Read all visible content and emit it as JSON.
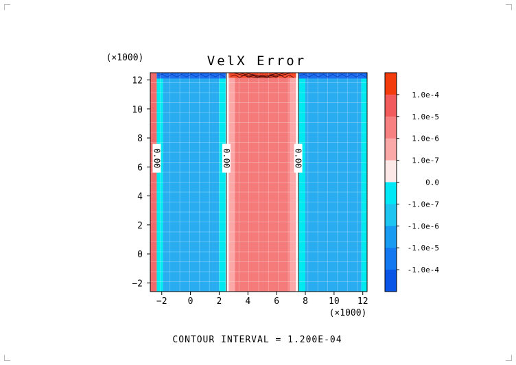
{
  "chart_data": {
    "type": "heatmap",
    "title": "VelX Error",
    "x_multiplier": "(×1000)",
    "y_multiplier": "(×1000)",
    "xlim": [
      -2.8,
      12.3
    ],
    "ylim": [
      -2.6,
      12.5
    ],
    "x_ticks": [
      {
        "value": -2,
        "label": "−2"
      },
      {
        "value": 0,
        "label": "0"
      },
      {
        "value": 2,
        "label": "2"
      },
      {
        "value": 4,
        "label": "4"
      },
      {
        "value": 6,
        "label": "6"
      },
      {
        "value": 8,
        "label": "8"
      },
      {
        "value": 10,
        "label": "10"
      },
      {
        "value": 12,
        "label": "12"
      }
    ],
    "y_ticks": [
      {
        "value": -2,
        "label": "−2"
      },
      {
        "value": 0,
        "label": "0"
      },
      {
        "value": 2,
        "label": "2"
      },
      {
        "value": 4,
        "label": "4"
      },
      {
        "value": 6,
        "label": "6"
      },
      {
        "value": 8,
        "label": "8"
      },
      {
        "value": 10,
        "label": "10"
      },
      {
        "value": 12,
        "label": "12"
      }
    ],
    "vertical_bands": [
      {
        "x0": -2.8,
        "x1": -2.35,
        "color": "#f06a6a"
      },
      {
        "x0": -2.35,
        "x1": -1.9,
        "color": "#00e8f0"
      },
      {
        "x0": -1.9,
        "x1": 2.0,
        "color": "#29adf0"
      },
      {
        "x0": 2.0,
        "x1": 2.45,
        "color": "#00e8f0"
      },
      {
        "x0": 2.45,
        "x1": 2.65,
        "color": "#ffffff"
      },
      {
        "x0": 2.65,
        "x1": 3.1,
        "color": "#fba7a7"
      },
      {
        "x0": 3.1,
        "x1": 6.9,
        "color": "#f57b7b"
      },
      {
        "x0": 6.9,
        "x1": 7.35,
        "color": "#fba7a7"
      },
      {
        "x0": 7.35,
        "x1": 7.55,
        "color": "#ffffff"
      },
      {
        "x0": 7.55,
        "x1": 8.0,
        "color": "#00e8f0"
      },
      {
        "x0": 8.0,
        "x1": 11.9,
        "color": "#29adf0"
      },
      {
        "x0": 11.9,
        "x1": 12.3,
        "color": "#00e8f0"
      }
    ],
    "top_strips": [
      {
        "x0": -2.35,
        "x1": 2.45,
        "y0": 12.1,
        "y1": 12.5,
        "color": "#1e6ef0"
      },
      {
        "x0": 2.65,
        "x1": 7.35,
        "y0": 12.15,
        "y1": 12.5,
        "color": "#f24a2a"
      },
      {
        "x0": 7.55,
        "x1": 12.3,
        "y0": 12.1,
        "y1": 12.5,
        "color": "#1e6ef0"
      }
    ],
    "contour_lines": [
      {
        "x": 2.5,
        "label": "0.00",
        "label_y": 6.6
      },
      {
        "x": 7.5,
        "label": "0.00",
        "label_y": 6.6
      },
      {
        "x": -2.35,
        "label": "0.00",
        "label_y": 6.6
      }
    ],
    "colorbar": [
      {
        "label": "1.0e-4",
        "color": "#f23c0e"
      },
      {
        "label": "1.0e-5",
        "color": "#f25b5b"
      },
      {
        "label": "1.0e-6",
        "color": "#f78181"
      },
      {
        "label": "1.0e-7",
        "color": "#fba8a8"
      },
      {
        "label": "0.0",
        "color": "#fde8e8"
      },
      {
        "label": "-1.0e-7",
        "color": "#00e8f5"
      },
      {
        "label": "-1.0e-6",
        "color": "#1ec5f0"
      },
      {
        "label": "-1.0e-5",
        "color": "#189bf0"
      },
      {
        "label": "-1.0e-4",
        "color": "#1478f0"
      },
      {
        "label": "",
        "color": "#0a55e6"
      }
    ],
    "footer": "CONTOUR INTERVAL = 1.200E-04"
  }
}
